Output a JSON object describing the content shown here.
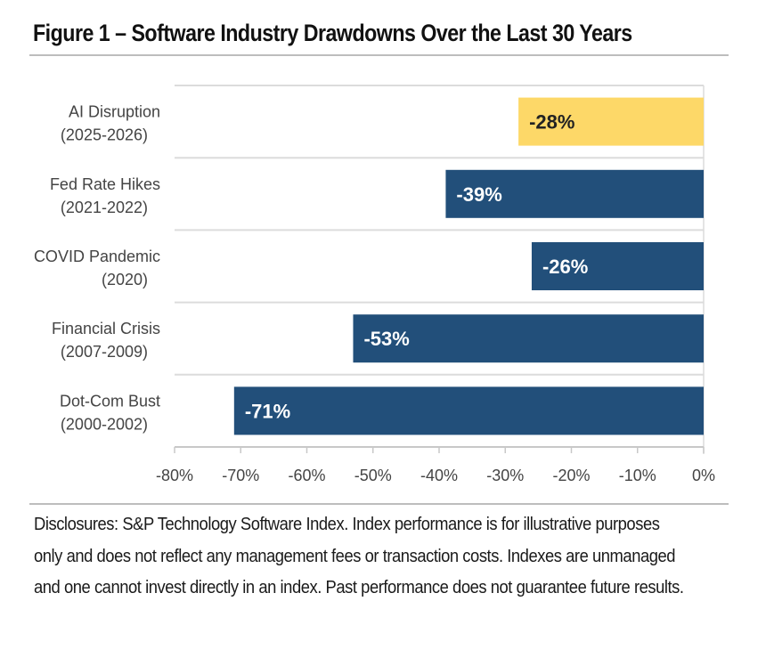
{
  "title": "Figure 1 – Software Industry Drawdowns Over the Last 30 Years",
  "disclosure": "Disclosures: S&P Technology Software Index. Index performance is for illustrative purposes only and does not reflect any management fees or transaction costs. Indexes are unmanaged and one cannot invest directly in an index. Past performance does not guarantee future results.",
  "colors": {
    "highlight": "#FDD868",
    "primary": "#224F7A",
    "highlight_text": "#222222",
    "primary_text": "#FFFFFF",
    "grid": "#dcdcdc"
  },
  "chart_data": {
    "type": "bar",
    "orientation": "horizontal",
    "title": "Figure 1 – Software Industry Drawdowns Over the Last 30 Years",
    "xlabel": "",
    "ylabel": "",
    "xlim": [
      -80,
      0
    ],
    "xticks": [
      -80,
      -70,
      -60,
      -50,
      -40,
      -30,
      -20,
      -10,
      0
    ],
    "xtick_labels": [
      "-80%",
      "-70%",
      "-60%",
      "-50%",
      "-40%",
      "-30%",
      "-20%",
      "-10%",
      "0%"
    ],
    "categories": [
      {
        "name": "AI Disruption",
        "period": "(2025-2026)"
      },
      {
        "name": "Fed Rate Hikes",
        "period": "(2021-2022)"
      },
      {
        "name": "COVID Pandemic",
        "period": "(2020)"
      },
      {
        "name": "Financial Crisis",
        "period": "(2007-2009)"
      },
      {
        "name": "Dot-Com Bust",
        "period": "(2000-2002)"
      }
    ],
    "values": [
      -28,
      -39,
      -26,
      -53,
      -71
    ],
    "data_labels": [
      "-28%",
      "-39%",
      "-26%",
      "-53%",
      "-71%"
    ],
    "highlight": [
      true,
      false,
      false,
      false,
      false
    ],
    "grid": true,
    "legend": "none"
  }
}
